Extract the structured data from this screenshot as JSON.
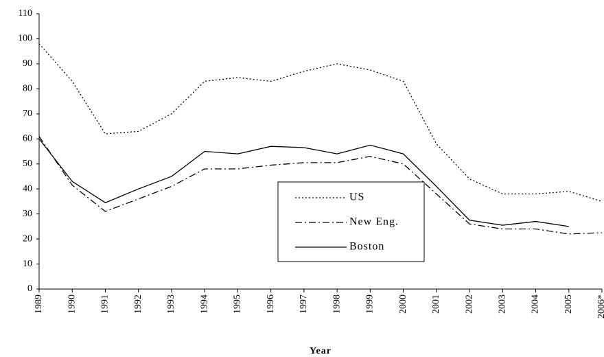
{
  "chart_data": {
    "type": "line",
    "x_label": "Year",
    "categories": [
      "1989",
      "1990",
      "1991",
      "1992",
      "1993",
      "1994",
      "1995",
      "1996",
      "1997",
      "1998",
      "1999",
      "2000",
      "2001",
      "2002",
      "2003",
      "2004",
      "2005",
      "2006*"
    ],
    "series": [
      {
        "name": "US",
        "color": "#000000",
        "dash": "dotted",
        "values": [
          98,
          83,
          62,
          63,
          70,
          83,
          84.5,
          83,
          87,
          90,
          87.5,
          83,
          58,
          44,
          38,
          38,
          39,
          35
        ]
      },
      {
        "name": "New Eng.",
        "color": "#000000",
        "dash": "dash-dot",
        "values": [
          61,
          41.5,
          31,
          36,
          41,
          48,
          48,
          49.5,
          50.5,
          50.5,
          53,
          50,
          38,
          26,
          24,
          24,
          22,
          22.5
        ]
      },
      {
        "name": "Boston",
        "color": "#000000",
        "dash": "solid",
        "values": [
          60,
          43,
          34.5,
          40,
          45,
          55,
          54,
          57,
          56.5,
          54,
          57.5,
          54,
          41,
          27.5,
          25.5,
          27,
          25,
          null
        ]
      }
    ],
    "ylim": [
      0,
      110
    ],
    "yticks": [
      0,
      10,
      20,
      30,
      40,
      50,
      60,
      70,
      80,
      90,
      100,
      110
    ],
    "grid": false,
    "legend": "center"
  }
}
